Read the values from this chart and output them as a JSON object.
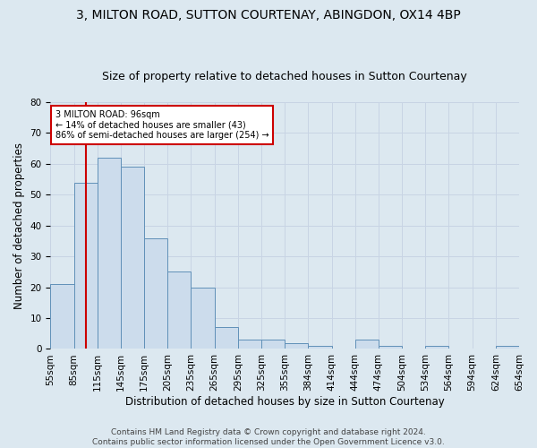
{
  "title": "3, MILTON ROAD, SUTTON COURTENAY, ABINGDON, OX14 4BP",
  "subtitle": "Size of property relative to detached houses in Sutton Courtenay",
  "xlabel": "Distribution of detached houses by size in Sutton Courtenay",
  "ylabel": "Number of detached properties",
  "bar_values": [
    21,
    54,
    62,
    59,
    36,
    25,
    20,
    7,
    3,
    3,
    2,
    1,
    0,
    3,
    1,
    0,
    1,
    0,
    0,
    1
  ],
  "bar_labels": [
    "55sqm",
    "85sqm",
    "115sqm",
    "145sqm",
    "175sqm",
    "205sqm",
    "235sqm",
    "265sqm",
    "295sqm",
    "325sqm",
    "355sqm",
    "384sqm",
    "414sqm",
    "444sqm",
    "474sqm",
    "504sqm",
    "534sqm",
    "564sqm",
    "594sqm",
    "624sqm",
    "654sqm"
  ],
  "bar_color": "#ccdcec",
  "bar_edge_color": "#6090b8",
  "vline_x": 1.0,
  "vline_color": "#cc0000",
  "annotation_text": "3 MILTON ROAD: 96sqm\n← 14% of detached houses are smaller (43)\n86% of semi-detached houses are larger (254) →",
  "annotation_box_color": "#ffffff",
  "annotation_box_edge": "#cc0000",
  "ylim": [
    0,
    80
  ],
  "yticks": [
    0,
    10,
    20,
    30,
    40,
    50,
    60,
    70,
    80
  ],
  "grid_color": "#c8d4e4",
  "bg_color": "#dce8f0",
  "footer": "Contains HM Land Registry data © Crown copyright and database right 2024.\nContains public sector information licensed under the Open Government Licence v3.0.",
  "title_fontsize": 10,
  "subtitle_fontsize": 9,
  "xlabel_fontsize": 8.5,
  "ylabel_fontsize": 8.5,
  "footer_fontsize": 6.5,
  "tick_fontsize": 7.5
}
